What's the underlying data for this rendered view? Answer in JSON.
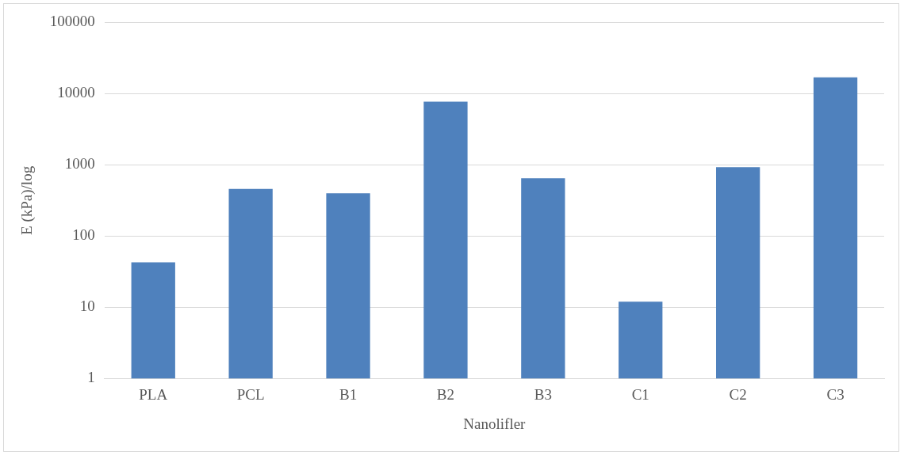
{
  "chart_data": {
    "type": "bar",
    "xlabel": "Nanolifler",
    "ylabel": "E (kPa)/log",
    "categories": [
      "PLA",
      "PCL",
      "B1",
      "B2",
      "B3",
      "C1",
      "C2",
      "C3"
    ],
    "values": [
      43,
      460,
      400,
      7700,
      650,
      12,
      930,
      17000
    ],
    "color": "#4f81bd",
    "log": "y",
    "ylim": [
      1,
      100000
    ],
    "yticks": [
      1,
      10,
      100,
      1000,
      10000,
      100000
    ],
    "grid": "y",
    "legend": false
  }
}
